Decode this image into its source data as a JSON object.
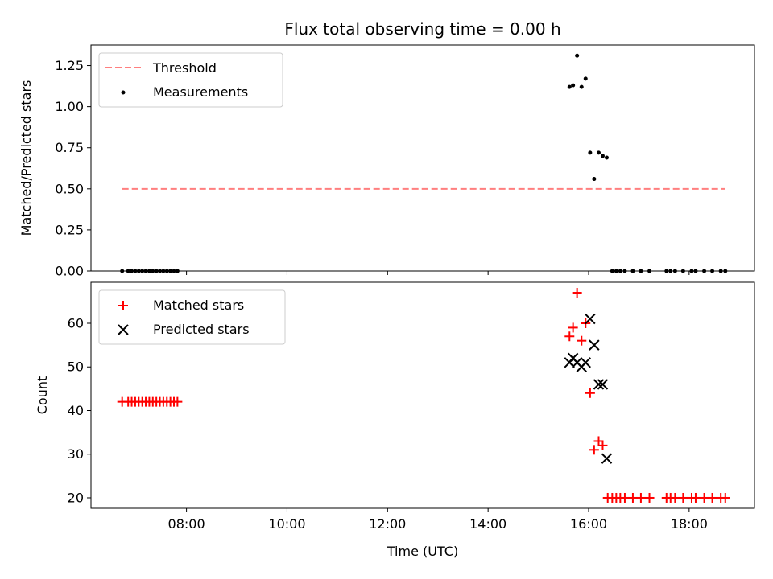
{
  "chart_data": [
    {
      "type": "scatter",
      "title": "Flux total observing time = 0.00 h",
      "xlabel": "",
      "ylabel": "Matched/Predicted stars",
      "ylim": [
        0,
        1.375
      ],
      "yticks": [
        "0.00",
        "0.25",
        "0.50",
        "0.75",
        "1.00",
        "1.25"
      ],
      "ytick_values": [
        0,
        0.25,
        0.5,
        0.75,
        1.0,
        1.25
      ],
      "legend_position": "upper-left",
      "legend": [
        "Threshold",
        "Measurements"
      ],
      "threshold": {
        "name": "Threshold",
        "y": 0.5,
        "x": [
          6.72,
          18.72
        ],
        "color": "#ff7f7f"
      },
      "series": [
        {
          "name": "Measurements",
          "marker": "dot",
          "color": "#000000",
          "points": [
            [
              6.72,
              0
            ],
            [
              6.84,
              0
            ],
            [
              6.91,
              0
            ],
            [
              6.98,
              0
            ],
            [
              7.05,
              0
            ],
            [
              7.12,
              0
            ],
            [
              7.19,
              0
            ],
            [
              7.26,
              0
            ],
            [
              7.33,
              0
            ],
            [
              7.4,
              0
            ],
            [
              7.47,
              0
            ],
            [
              7.54,
              0
            ],
            [
              7.61,
              0
            ],
            [
              7.68,
              0
            ],
            [
              7.75,
              0
            ],
            [
              7.82,
              0
            ],
            [
              15.62,
              1.12
            ],
            [
              15.69,
              1.13
            ],
            [
              15.77,
              1.31
            ],
            [
              15.86,
              1.12
            ],
            [
              15.94,
              1.17
            ],
            [
              16.03,
              0.72
            ],
            [
              16.11,
              0.56
            ],
            [
              16.2,
              0.72
            ],
            [
              16.28,
              0.7
            ],
            [
              16.36,
              0.69
            ],
            [
              16.47,
              0
            ],
            [
              16.55,
              0
            ],
            [
              16.63,
              0
            ],
            [
              16.72,
              0
            ],
            [
              16.88,
              0
            ],
            [
              17.04,
              0
            ],
            [
              17.21,
              0
            ],
            [
              17.55,
              0
            ],
            [
              17.63,
              0
            ],
            [
              17.72,
              0
            ],
            [
              17.88,
              0
            ],
            [
              18.05,
              0
            ],
            [
              18.13,
              0
            ],
            [
              18.3,
              0
            ],
            [
              18.46,
              0
            ],
            [
              18.63,
              0
            ],
            [
              18.72,
              0
            ]
          ]
        }
      ]
    },
    {
      "type": "scatter",
      "title": "",
      "xlabel": "Time (UTC)",
      "ylabel": "Count",
      "ylim": [
        17.6,
        69.4
      ],
      "xlim": [
        6.1,
        19.3
      ],
      "yticks": [
        "20",
        "30",
        "40",
        "50",
        "60"
      ],
      "ytick_values": [
        20,
        30,
        40,
        50,
        60
      ],
      "xticks": [
        "08:00",
        "10:00",
        "12:00",
        "14:00",
        "16:00",
        "18:00"
      ],
      "xtick_values": [
        8,
        10,
        12,
        14,
        16,
        18
      ],
      "legend_position": "upper-left",
      "legend": [
        "Matched stars",
        "Predicted stars"
      ],
      "series": [
        {
          "name": "Matched stars",
          "marker": "plus",
          "color": "#ff0000",
          "points": [
            [
              6.72,
              42
            ],
            [
              6.84,
              42
            ],
            [
              6.91,
              42
            ],
            [
              6.98,
              42
            ],
            [
              7.05,
              42
            ],
            [
              7.12,
              42
            ],
            [
              7.19,
              42
            ],
            [
              7.26,
              42
            ],
            [
              7.33,
              42
            ],
            [
              7.4,
              42
            ],
            [
              7.47,
              42
            ],
            [
              7.54,
              42
            ],
            [
              7.61,
              42
            ],
            [
              7.68,
              42
            ],
            [
              7.75,
              42
            ],
            [
              7.82,
              42
            ],
            [
              15.62,
              57
            ],
            [
              15.69,
              59
            ],
            [
              15.77,
              67
            ],
            [
              15.86,
              56
            ],
            [
              15.94,
              60
            ],
            [
              16.03,
              44
            ],
            [
              16.11,
              31
            ],
            [
              16.2,
              33
            ],
            [
              16.28,
              32
            ],
            [
              16.38,
              20
            ],
            [
              16.47,
              20
            ],
            [
              16.55,
              20
            ],
            [
              16.63,
              20
            ],
            [
              16.72,
              20
            ],
            [
              16.88,
              20
            ],
            [
              17.04,
              20
            ],
            [
              17.21,
              20
            ],
            [
              17.55,
              20
            ],
            [
              17.63,
              20
            ],
            [
              17.72,
              20
            ],
            [
              17.88,
              20
            ],
            [
              18.05,
              20
            ],
            [
              18.13,
              20
            ],
            [
              18.3,
              20
            ],
            [
              18.46,
              20
            ],
            [
              18.63,
              20
            ],
            [
              18.72,
              20
            ]
          ]
        },
        {
          "name": "Predicted stars",
          "marker": "x",
          "color": "#000000",
          "points": [
            [
              15.62,
              51
            ],
            [
              15.69,
              52
            ],
            [
              15.77,
              51
            ],
            [
              15.86,
              50
            ],
            [
              15.94,
              51
            ],
            [
              16.03,
              61
            ],
            [
              16.11,
              55
            ],
            [
              16.2,
              46
            ],
            [
              16.28,
              46
            ],
            [
              16.36,
              29
            ]
          ]
        }
      ]
    }
  ]
}
